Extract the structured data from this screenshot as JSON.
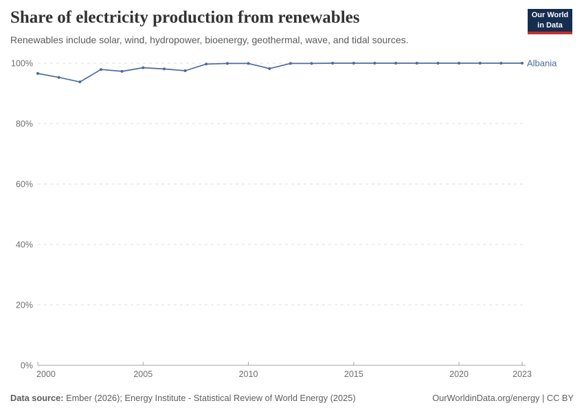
{
  "header": {
    "title": "Share of electricity production from renewables",
    "subtitle": "Renewables include solar, wind, hydropower, bioenergy, geothermal, wave, and tidal sources."
  },
  "logo": {
    "line1": "Our World",
    "line2": "in Data"
  },
  "colors": {
    "line": "#4c6a9c",
    "grid": "#dedede",
    "axis": "#a3a3a3",
    "axis_text": "#6e6e6e",
    "logo_bg": "#152d4f",
    "logo_red": "#c5302d"
  },
  "chart_data": {
    "type": "line",
    "title": "Share of electricity production from renewables",
    "subtitle": "Renewables include solar, wind, hydropower, bioenergy, geothermal, wave, and tidal sources.",
    "xlabel": "",
    "ylabel": "",
    "xlim": [
      2000,
      2023
    ],
    "ylim": [
      0,
      100
    ],
    "grid": "horizontal-dashed",
    "legend_position": "end-of-line-label",
    "x": [
      2000,
      2001,
      2002,
      2003,
      2004,
      2005,
      2006,
      2007,
      2008,
      2009,
      2010,
      2011,
      2012,
      2013,
      2014,
      2015,
      2016,
      2017,
      2018,
      2019,
      2020,
      2021,
      2022,
      2023
    ],
    "series": [
      {
        "name": "Albania",
        "color": "#4c6a9c",
        "values": [
          96.6,
          95.3,
          93.8,
          97.9,
          97.3,
          98.5,
          98.1,
          97.5,
          99.7,
          99.9,
          99.9,
          98.2,
          99.9,
          99.9,
          100,
          100,
          100,
          100,
          100,
          100,
          100,
          100,
          100,
          100
        ]
      }
    ],
    "yticks": [
      {
        "v": 0,
        "label": "0%"
      },
      {
        "v": 20,
        "label": "20%"
      },
      {
        "v": 40,
        "label": "40%"
      },
      {
        "v": 60,
        "label": "60%"
      },
      {
        "v": 80,
        "label": "80%"
      },
      {
        "v": 100,
        "label": "100%"
      }
    ],
    "xticks": [
      {
        "v": 2000,
        "label": "2000"
      },
      {
        "v": 2005,
        "label": "2005"
      },
      {
        "v": 2010,
        "label": "2010"
      },
      {
        "v": 2015,
        "label": "2015"
      },
      {
        "v": 2020,
        "label": "2020"
      },
      {
        "v": 2023,
        "label": "2023"
      }
    ]
  },
  "footer": {
    "source_label": "Data source:",
    "sources": "Ember (2026); Energy Institute - Statistical Review of World Energy (2025)",
    "attribution": "OurWorldinData.org/energy | CC BY"
  }
}
